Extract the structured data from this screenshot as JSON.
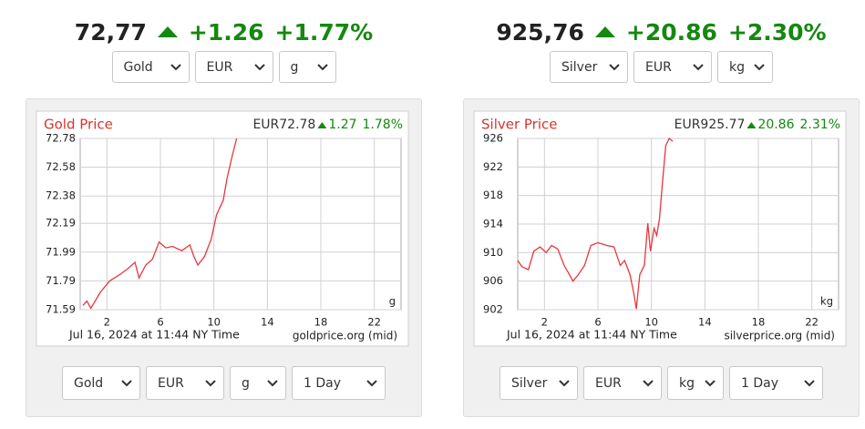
{
  "widgets": [
    {
      "price": "72,77",
      "change": "+1.26",
      "change_pct": "+1.77%",
      "selects_top": [
        "Gold",
        "EUR",
        "g"
      ],
      "chart": {
        "type": "line",
        "title": "Gold Price",
        "quote": "EUR72.78",
        "quote_change": "1.27",
        "quote_pct": "1.78%",
        "unit": "g",
        "footer_left": "Jul 16, 2024 at 11:44 NY Time",
        "footer_right": "goldprice.org (mid)",
        "color": "#e8363c",
        "grid": true,
        "x": [
          0.2,
          0.5,
          0.8,
          1.5,
          2.2,
          2.9,
          3.5,
          4.1,
          4.4,
          4.9,
          5.4,
          5.9,
          6.4,
          6.9,
          7.6,
          8.2,
          8.5,
          8.8,
          9.3,
          9.8,
          10.2,
          10.7,
          11.0,
          11.4,
          11.7
        ],
        "values": [
          71.62,
          71.65,
          71.6,
          71.71,
          71.79,
          71.83,
          71.87,
          71.92,
          71.81,
          71.9,
          71.94,
          72.06,
          72.02,
          72.03,
          72.0,
          72.04,
          71.96,
          71.9,
          71.96,
          72.08,
          72.25,
          72.35,
          72.51,
          72.67,
          72.78
        ],
        "xlim": [
          0,
          24
        ],
        "xticks": [
          2,
          6,
          10,
          14,
          18,
          22
        ],
        "ylim": [
          71.59,
          72.78
        ],
        "yticks": [
          72.78,
          72.58,
          72.38,
          72.19,
          71.99,
          71.79,
          71.59
        ]
      },
      "selects_bottom": [
        "Gold",
        "EUR",
        "g",
        "1 Day"
      ]
    },
    {
      "price": "925,76",
      "change": "+20.86",
      "change_pct": "+2.30%",
      "selects_top": [
        "Silver",
        "EUR",
        "kg"
      ],
      "chart": {
        "type": "line",
        "title": "Silver Price",
        "quote": "EUR925.77",
        "quote_change": "20.86",
        "quote_pct": "2.31%",
        "unit": "kg",
        "footer_left": "Jul 16, 2024 at 11:44 NY Time",
        "footer_right": "silverprice.org (mid)",
        "color": "#e8363c",
        "grid": true,
        "x": [
          0,
          0.33,
          0.8,
          1.2,
          1.67,
          2.13,
          2.53,
          3,
          3.47,
          3.87,
          4.13,
          4.53,
          5,
          5.47,
          6,
          6.67,
          7.2,
          7.67,
          8,
          8.4,
          8.67,
          8.87,
          9.13,
          9.47,
          9.73,
          9.93,
          10.2,
          10.4,
          10.6,
          10.8,
          11.07,
          11.33,
          11.6
        ],
        "values": [
          908.9,
          908.0,
          907.6,
          910.2,
          910.8,
          910.0,
          911.0,
          910.5,
          908.2,
          906.9,
          906.0,
          906.9,
          908.2,
          911.0,
          911.4,
          911.0,
          910.8,
          908.2,
          908.9,
          906.9,
          904.4,
          902.1,
          906.9,
          908.2,
          914.1,
          910.2,
          913.4,
          912.4,
          914.7,
          919.2,
          925.0,
          926.0,
          925.6
        ],
        "xlim": [
          0,
          24
        ],
        "xticks": [
          2,
          6,
          10,
          14,
          18,
          22
        ],
        "ylim": [
          902,
          926
        ],
        "yticks": [
          926,
          922,
          918,
          914,
          910,
          906,
          902
        ]
      },
      "selects_bottom": [
        "Silver",
        "EUR",
        "kg",
        "1 Day"
      ]
    }
  ]
}
